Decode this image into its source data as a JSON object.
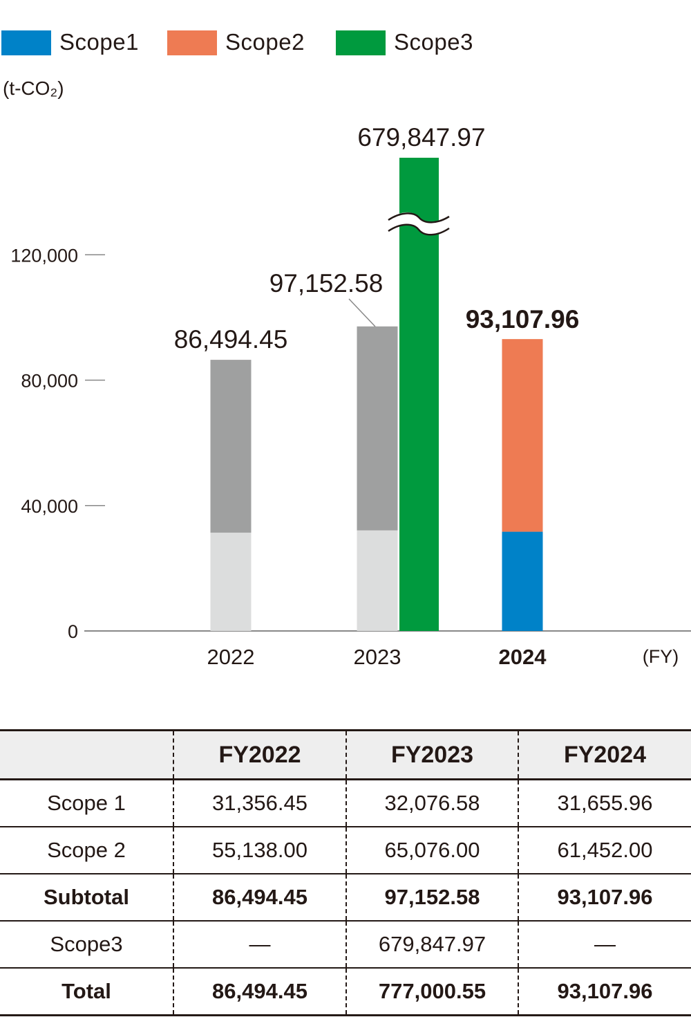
{
  "legend": [
    {
      "label": "Scope1",
      "color": "#0082c8"
    },
    {
      "label": "Scope2",
      "color": "#ee7b53"
    },
    {
      "label": "Scope3",
      "color": "#009a3e"
    }
  ],
  "unit_label": "(t-CO₂)",
  "chart_data": {
    "type": "bar",
    "categories": [
      "2022",
      "2023",
      "2024"
    ],
    "highlight_category": "2024",
    "x_unit_label": "(FY)",
    "ylim": [
      0,
      150000
    ],
    "y_ticks": [
      {
        "value": 0,
        "label": "0"
      },
      {
        "value": 40000,
        "label": "40,000"
      },
      {
        "value": 80000,
        "label": "80,000"
      },
      {
        "value": 120000,
        "label": "120,000"
      }
    ],
    "grid": false,
    "axis_break": true,
    "stacks": [
      {
        "category": "2022",
        "scope1": 31356.45,
        "scope2": 55138.0,
        "total": 86494.45,
        "total_label": "86,494.45",
        "style": "past"
      },
      {
        "category": "2023",
        "scope1": 32076.58,
        "scope2": 65076.0,
        "total": 97152.58,
        "total_label": "97,152.58",
        "style": "past"
      },
      {
        "category": "2024",
        "scope1": 31655.96,
        "scope2": 61452.0,
        "total": 93107.96,
        "total_label": "93,107.96",
        "style": "current"
      }
    ],
    "scope3_bars": [
      {
        "category": "2023",
        "value": 679847.97,
        "label": "679,847.97",
        "broken": true
      }
    ],
    "colors": {
      "scope1": "#0082c8",
      "scope2": "#ee7b53",
      "scope3": "#009a3e",
      "past_scope1": "#dcdddd",
      "past_scope2": "#9fa0a0",
      "axis": "#888888",
      "text": "#231815"
    }
  },
  "table": {
    "headers": [
      "",
      "FY2022",
      "FY2023",
      "FY2024"
    ],
    "rows": [
      {
        "label": "Scope 1",
        "bold": false,
        "values": [
          "31,356.45",
          "32,076.58",
          "31,655.96"
        ]
      },
      {
        "label": "Scope 2",
        "bold": false,
        "values": [
          "55,138.00",
          "65,076.00",
          "61,452.00"
        ]
      },
      {
        "label": "Subtotal",
        "bold": true,
        "values": [
          "86,494.45",
          "97,152.58",
          "93,107.96"
        ]
      },
      {
        "label": "Scope3",
        "bold": false,
        "values": [
          "—",
          "679,847.97",
          "—"
        ]
      },
      {
        "label": "Total",
        "bold": true,
        "values": [
          "86,494.45",
          "777,000.55",
          "93,107.96"
        ]
      }
    ]
  }
}
